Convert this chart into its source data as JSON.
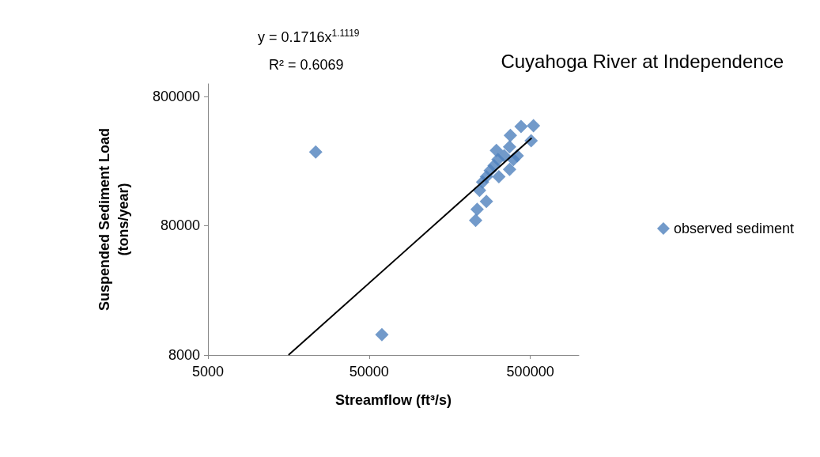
{
  "chart_data": {
    "type": "scatter",
    "title": "Cuyahoga River at Independence",
    "xlabel": "Streamflow (ft³/s)",
    "ylabel": "Suspended Sediment Load\n(tons/year)",
    "log": "xy",
    "xlim": [
      5000,
      1000000
    ],
    "ylim": [
      8000,
      1000000
    ],
    "xticks": [
      5000,
      50000,
      500000
    ],
    "yticks": [
      8000,
      80000,
      800000
    ],
    "grid": false,
    "legend": "right",
    "marker": "diamond",
    "annotations": [
      "y = 0.1716x$^{1.1119}$",
      "R² = 0.6069"
    ],
    "series": [
      {
        "name": "observed sediment",
        "color": "#4f81bd",
        "x": [
          23300,
          60000,
          229000,
          234000,
          267000,
          242000,
          253000,
          267000,
          282000,
          298000,
          315000,
          308000,
          344000,
          319000,
          372000,
          393000,
          376000,
          438000,
          523000,
          506000,
          415000,
          372000
        ],
        "values": [
          297000,
          11500,
          87900,
          107000,
          123000,
          150000,
          174000,
          191000,
          213000,
          233000,
          260000,
          305000,
          278000,
          191000,
          218000,
          260000,
          399000,
          468000,
          474000,
          363000,
          278000,
          326000
        ]
      },
      {
        "type": "line",
        "color": "#000000",
        "marker": "none",
        "x": [
          15800,
          510000
        ],
        "values": [
          8000,
          381000
        ]
      }
    ]
  }
}
